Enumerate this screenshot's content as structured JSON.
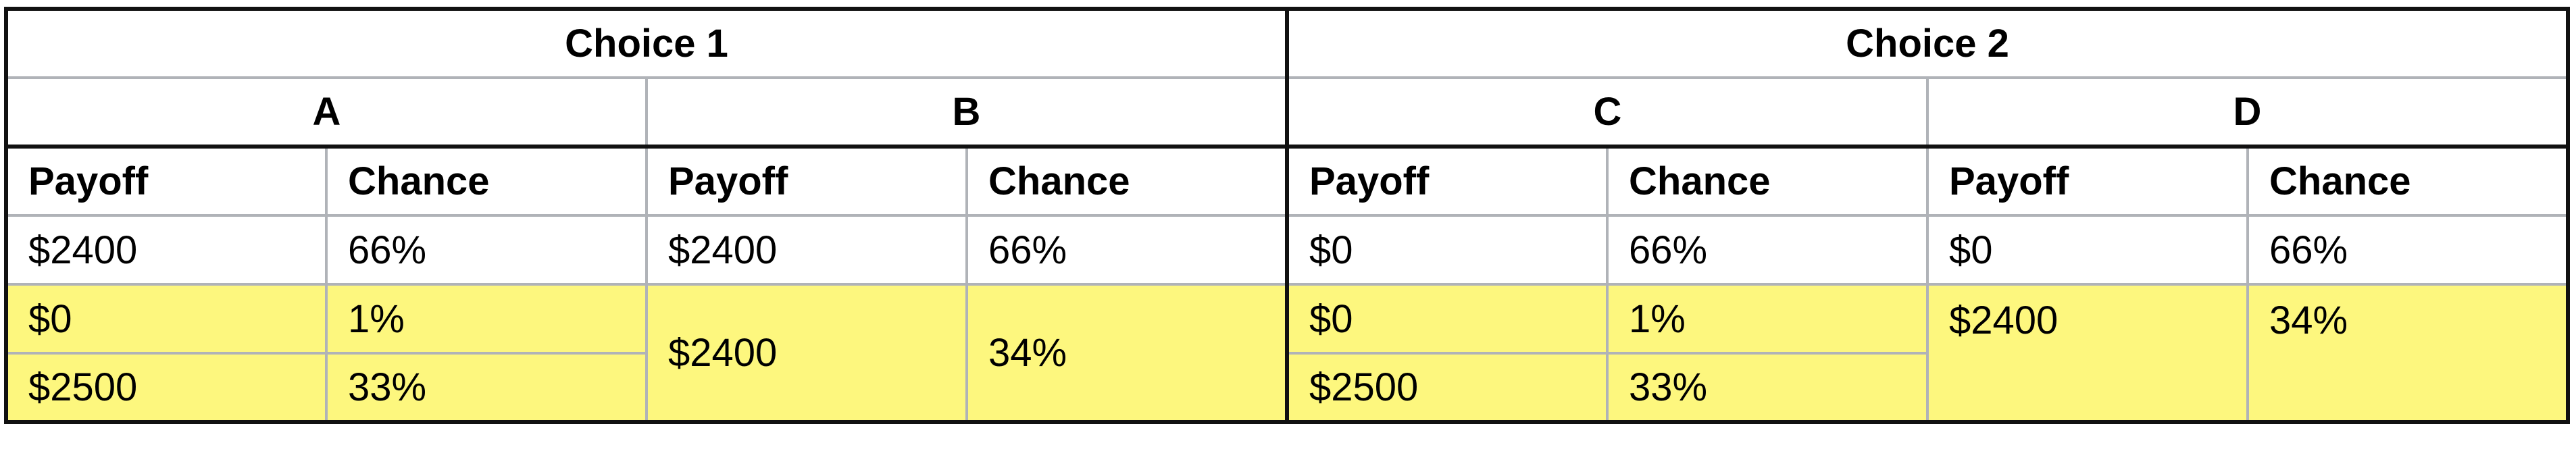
{
  "choices": [
    {
      "label": "Choice 1"
    },
    {
      "label": "Choice 2"
    }
  ],
  "options": [
    "A",
    "B",
    "C",
    "D"
  ],
  "column_headers": {
    "payoff": "Payoff",
    "chance": "Chance"
  },
  "rows": {
    "A": [
      [
        "$2400",
        "66%"
      ],
      [
        "$0",
        "1%"
      ],
      [
        "$2500",
        "33%"
      ]
    ],
    "B": [
      [
        "$2400",
        "66%"
      ],
      [
        "$2400",
        "34%"
      ]
    ],
    "C": [
      [
        "$0",
        "66%"
      ],
      [
        "$0",
        "1%"
      ],
      [
        "$2500",
        "33%"
      ]
    ],
    "D": [
      [
        "$0",
        "66%"
      ],
      [
        "$2400",
        "34%"
      ]
    ]
  },
  "colors": {
    "highlight": "#fdf77e",
    "grid": "#b0b3b8",
    "outer_border": "#111111"
  }
}
